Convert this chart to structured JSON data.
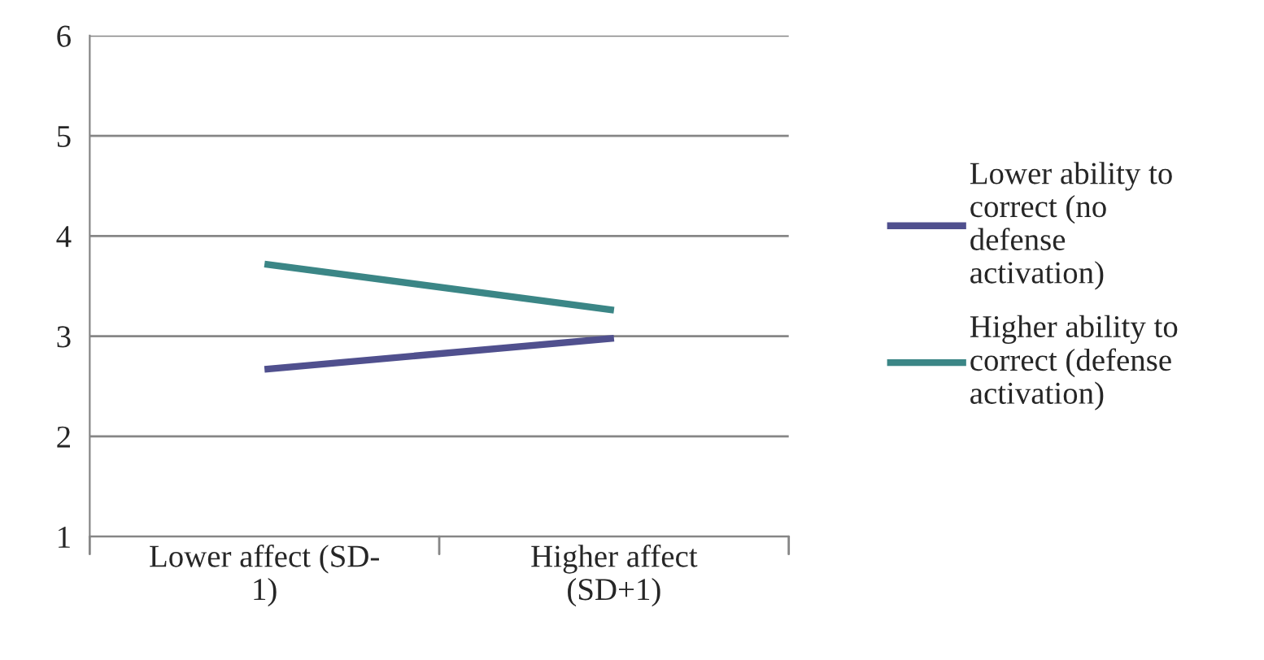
{
  "chart_data": {
    "type": "line",
    "categories": [
      "Lower affect (SD-\n1)",
      "Higher affect\n(SD+1)"
    ],
    "series": [
      {
        "name": "Lower ability to\ncorrect (no\ndefense\nactivation)",
        "color": "#50508e",
        "values": [
          2.67,
          2.98
        ]
      },
      {
        "name": "Higher ability to\ncorrect (defense\nactivation)",
        "color": "#3b8686",
        "values": [
          3.72,
          3.26
        ]
      }
    ],
    "ylim": [
      1,
      6
    ],
    "yticks": [
      1,
      2,
      3,
      4,
      5,
      6
    ],
    "grid": "y",
    "legend": "right",
    "marker": "none",
    "line_style": "solid"
  }
}
